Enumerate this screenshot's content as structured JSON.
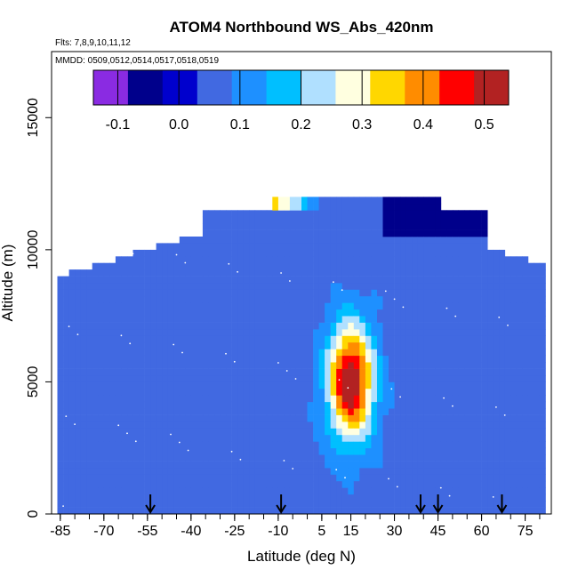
{
  "chart_data": {
    "type": "heatmap",
    "title": "ATOM4 Northbound WS_Abs_420nm",
    "flights_note": "Flts: 7,8,9,10,11,12",
    "dates_note": "MMDD: 0509,0512,0514,0517,0518,0519",
    "xlabel": "Latitude (deg N)",
    "ylabel": "Altitude (m)",
    "xlim": [
      -88,
      84
    ],
    "ylim": [
      0,
      17500
    ],
    "x_ticks": [
      -85,
      -70,
      -55,
      -40,
      -25,
      -10,
      5,
      15,
      30,
      45,
      60,
      75
    ],
    "x_tick_labels": [
      "-85",
      "-70",
      "-55",
      "-40",
      "-25",
      "-10",
      "5",
      "15",
      "30",
      "45",
      "60",
      "75"
    ],
    "y_ticks": [
      0,
      5000,
      10000,
      15000
    ],
    "y_tick_labels": [
      "0",
      "5000",
      "10000",
      "15000"
    ],
    "colorbar": {
      "range": [
        -0.14,
        0.54
      ],
      "ticks": [
        -0.1,
        0.0,
        0.1,
        0.2,
        0.3,
        0.4,
        0.5
      ],
      "tick_labels": [
        "-0.1",
        "0.0",
        "0.1",
        "0.2",
        "0.3",
        "0.4",
        "0.5"
      ],
      "colors": [
        "#8a2be2",
        "#00008b",
        "#0000cd",
        "#4169e1",
        "#1e90ff",
        "#00bfff",
        "#b0e0ff",
        "#ffffe0",
        "#ffd700",
        "#ff8c00",
        "#ff0000",
        "#b22222"
      ]
    },
    "profile_markers_lat": [
      -54,
      -9,
      39,
      45,
      67
    ],
    "field": {
      "background": 0.06,
      "plume": {
        "lat_center": 15,
        "alt_center": 5000,
        "lat_width": 8,
        "alt_width": 2200,
        "peak": 0.48
      },
      "upper_layer": {
        "lat_min": -35,
        "lat_max": 5,
        "alt_min": 11500,
        "alt_max": 12100,
        "peak": 0.42
      },
      "low_blue_region": {
        "lat_min": 25,
        "lat_max": 70,
        "alt_min": 10500,
        "alt_max": 12500,
        "value": -0.08
      }
    }
  }
}
